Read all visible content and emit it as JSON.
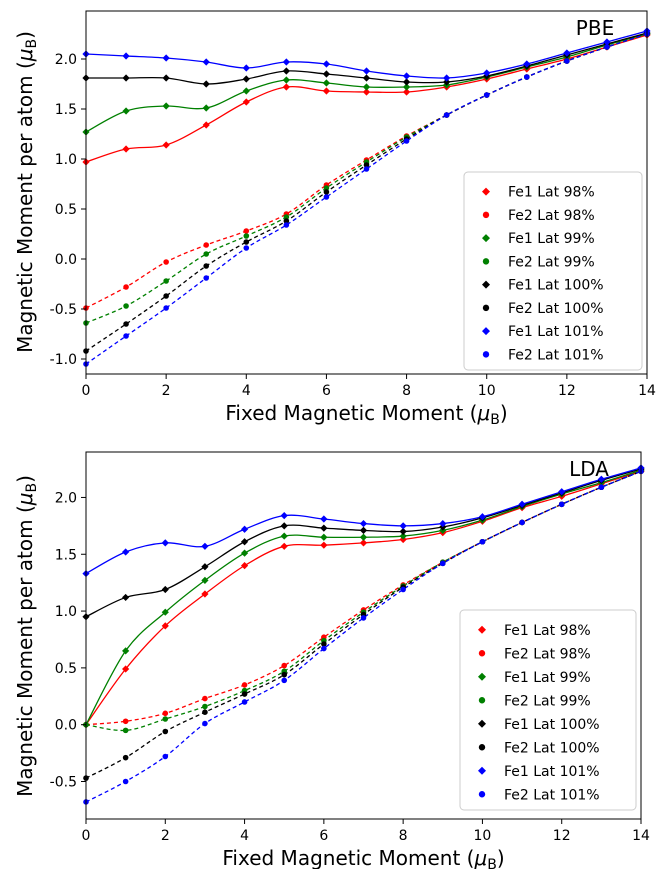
{
  "chart_data": [
    {
      "type": "line",
      "panel_label": "PBE",
      "xlabel": "Fixed Magnetic Moment (μB)",
      "ylabel": "Magnetic Moment per atom (μB)",
      "xlim": [
        0,
        14
      ],
      "ylim": [
        -1.15,
        2.48
      ],
      "xticks": [
        0,
        2,
        4,
        6,
        8,
        10,
        12,
        14
      ],
      "yticks": [
        -1.0,
        -0.5,
        0.0,
        0.5,
        1.0,
        1.5,
        2.0
      ],
      "grid": false,
      "legend_position": "lower-right",
      "x": [
        0,
        1,
        2,
        3,
        4,
        5,
        6,
        7,
        8,
        9,
        10,
        11,
        12,
        13,
        14
      ],
      "series": [
        {
          "name": "Fe1 Lat 98%",
          "color": "#ff0000",
          "marker": "diamond",
          "line": "solid",
          "values": [
            0.97,
            1.1,
            1.14,
            1.34,
            1.57,
            1.72,
            1.68,
            1.67,
            1.67,
            1.72,
            1.8,
            1.9,
            2.0,
            2.12,
            2.24
          ]
        },
        {
          "name": "Fe2 Lat 98%",
          "color": "#ff0000",
          "marker": "circle",
          "line": "dashed",
          "values": [
            -0.49,
            -0.28,
            -0.03,
            0.14,
            0.28,
            0.45,
            0.74,
            0.99,
            1.23,
            1.44,
            1.64,
            1.82,
            1.98,
            2.12,
            2.25
          ]
        },
        {
          "name": "Fe1 Lat 99%",
          "color": "#008000",
          "marker": "diamond",
          "line": "solid",
          "values": [
            1.27,
            1.48,
            1.53,
            1.51,
            1.68,
            1.79,
            1.76,
            1.72,
            1.72,
            1.74,
            1.82,
            1.92,
            2.02,
            2.14,
            2.25
          ]
        },
        {
          "name": "Fe2 Lat 99%",
          "color": "#008000",
          "marker": "circle",
          "line": "dashed",
          "values": [
            -0.64,
            -0.47,
            -0.22,
            0.05,
            0.23,
            0.42,
            0.71,
            0.97,
            1.22,
            1.44,
            1.64,
            1.82,
            1.98,
            2.12,
            2.25
          ]
        },
        {
          "name": "Fe1 Lat 100%",
          "color": "#000000",
          "marker": "diamond",
          "line": "solid",
          "values": [
            1.81,
            1.81,
            1.81,
            1.75,
            1.8,
            1.88,
            1.85,
            1.81,
            1.77,
            1.77,
            1.83,
            1.93,
            2.04,
            2.15,
            2.26
          ]
        },
        {
          "name": "Fe2 Lat 100%",
          "color": "#000000",
          "marker": "circle",
          "line": "dashed",
          "values": [
            -0.92,
            -0.65,
            -0.37,
            -0.07,
            0.17,
            0.38,
            0.67,
            0.94,
            1.2,
            1.44,
            1.64,
            1.82,
            1.98,
            2.12,
            2.25
          ]
        },
        {
          "name": "Fe1 Lat 101%",
          "color": "#0000ff",
          "marker": "diamond",
          "line": "solid",
          "values": [
            2.05,
            2.03,
            2.01,
            1.97,
            1.91,
            1.97,
            1.95,
            1.88,
            1.83,
            1.81,
            1.86,
            1.95,
            2.06,
            2.17,
            2.28
          ]
        },
        {
          "name": "Fe2 Lat 101%",
          "color": "#0000ff",
          "marker": "circle",
          "line": "dashed",
          "values": [
            -1.05,
            -0.77,
            -0.49,
            -0.19,
            0.11,
            0.34,
            0.62,
            0.9,
            1.18,
            1.44,
            1.64,
            1.82,
            1.98,
            2.12,
            2.25
          ]
        }
      ]
    },
    {
      "type": "line",
      "panel_label": "LDA",
      "xlabel": "Fixed Magnetic Moment (μB)",
      "ylabel": "Magnetic Moment per atom (μB)",
      "xlim": [
        0,
        14
      ],
      "ylim": [
        -0.83,
        2.4
      ],
      "xticks": [
        0,
        2,
        4,
        6,
        8,
        10,
        12,
        14
      ],
      "yticks": [
        -0.5,
        0.0,
        0.5,
        1.0,
        1.5,
        2.0
      ],
      "grid": false,
      "legend_position": "lower-right",
      "x": [
        0,
        1,
        2,
        3,
        4,
        5,
        6,
        7,
        8,
        9,
        10,
        11,
        12,
        13,
        14
      ],
      "series": [
        {
          "name": "Fe1 Lat 98%",
          "color": "#ff0000",
          "marker": "diamond",
          "line": "solid",
          "values": [
            0.0,
            0.49,
            0.87,
            1.15,
            1.4,
            1.57,
            1.58,
            1.6,
            1.63,
            1.69,
            1.79,
            1.91,
            2.01,
            2.12,
            2.23
          ]
        },
        {
          "name": "Fe2 Lat 98%",
          "color": "#ff0000",
          "marker": "circle",
          "line": "dashed",
          "values": [
            0.0,
            0.03,
            0.1,
            0.23,
            0.35,
            0.52,
            0.77,
            1.01,
            1.23,
            1.43,
            1.61,
            1.78,
            1.94,
            2.09,
            2.23
          ]
        },
        {
          "name": "Fe1 Lat 99%",
          "color": "#008000",
          "marker": "diamond",
          "line": "solid",
          "values": [
            0.0,
            0.65,
            0.99,
            1.27,
            1.51,
            1.66,
            1.65,
            1.65,
            1.66,
            1.71,
            1.8,
            1.92,
            2.03,
            2.13,
            2.24
          ]
        },
        {
          "name": "Fe2 Lat 99%",
          "color": "#008000",
          "marker": "circle",
          "line": "dashed",
          "values": [
            0.0,
            -0.05,
            0.05,
            0.16,
            0.3,
            0.47,
            0.74,
            0.99,
            1.22,
            1.43,
            1.61,
            1.78,
            1.94,
            2.09,
            2.23
          ]
        },
        {
          "name": "Fe1 Lat 100%",
          "color": "#000000",
          "marker": "diamond",
          "line": "solid",
          "values": [
            0.95,
            1.12,
            1.19,
            1.39,
            1.61,
            1.75,
            1.73,
            1.71,
            1.7,
            1.74,
            1.82,
            1.93,
            2.04,
            2.15,
            2.25
          ]
        },
        {
          "name": "Fe2 Lat 100%",
          "color": "#000000",
          "marker": "circle",
          "line": "dashed",
          "values": [
            -0.47,
            -0.29,
            -0.06,
            0.11,
            0.27,
            0.44,
            0.71,
            0.97,
            1.21,
            1.42,
            1.61,
            1.78,
            1.94,
            2.09,
            2.23
          ]
        },
        {
          "name": "Fe1 Lat 101%",
          "color": "#0000ff",
          "marker": "diamond",
          "line": "solid",
          "values": [
            1.33,
            1.52,
            1.6,
            1.57,
            1.72,
            1.84,
            1.81,
            1.77,
            1.75,
            1.77,
            1.83,
            1.94,
            2.05,
            2.16,
            2.26
          ]
        },
        {
          "name": "Fe2 Lat 101%",
          "color": "#0000ff",
          "marker": "circle",
          "line": "dashed",
          "values": [
            -0.68,
            -0.5,
            -0.28,
            0.01,
            0.2,
            0.39,
            0.67,
            0.94,
            1.19,
            1.42,
            1.61,
            1.78,
            1.94,
            2.09,
            2.23
          ]
        }
      ]
    }
  ]
}
